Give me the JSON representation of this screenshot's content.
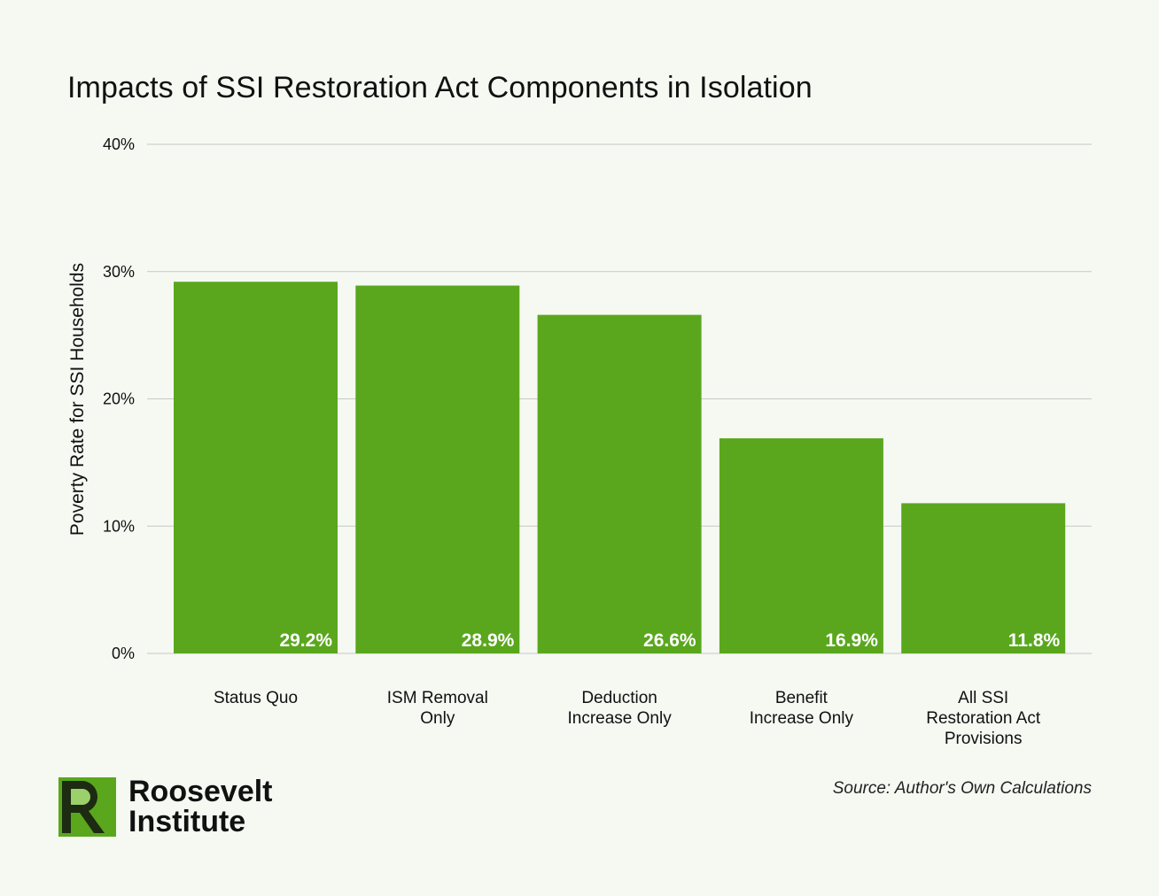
{
  "title": "Impacts of SSI Restoration Act Components in Isolation",
  "source": "Source: Author's Own Calculations",
  "logo": {
    "line1": "Roosevelt",
    "line2": "Institute"
  },
  "colors": {
    "background": "#f5f9f2",
    "bar": "#5aa71d",
    "grid": "#c8c8c8",
    "logo_dark": "#1c2b12",
    "logo_green": "#5aa71d",
    "logo_light": "#9cd06a"
  },
  "chart_data": {
    "type": "bar",
    "title": "Impacts of SSI Restoration Act Components in Isolation",
    "xlabel": "",
    "ylabel": "Poverty Rate for SSI Households",
    "categories": [
      [
        "Status Quo"
      ],
      [
        "ISM Removal",
        "Only"
      ],
      [
        "Deduction",
        "Increase Only"
      ],
      [
        "Benefit",
        "Increase Only"
      ],
      [
        "All SSI",
        "Restoration Act",
        "Provisions"
      ]
    ],
    "values": [
      29.2,
      28.9,
      26.6,
      16.9,
      11.8
    ],
    "value_labels": [
      "29.2%",
      "28.9%",
      "26.6%",
      "16.9%",
      "11.8%"
    ],
    "ylim": [
      0,
      40
    ],
    "yticks": [
      0,
      10,
      20,
      30,
      40
    ],
    "ytick_labels": [
      "0%",
      "10%",
      "20%",
      "30%",
      "40%"
    ],
    "grid": true,
    "legend": "none"
  }
}
